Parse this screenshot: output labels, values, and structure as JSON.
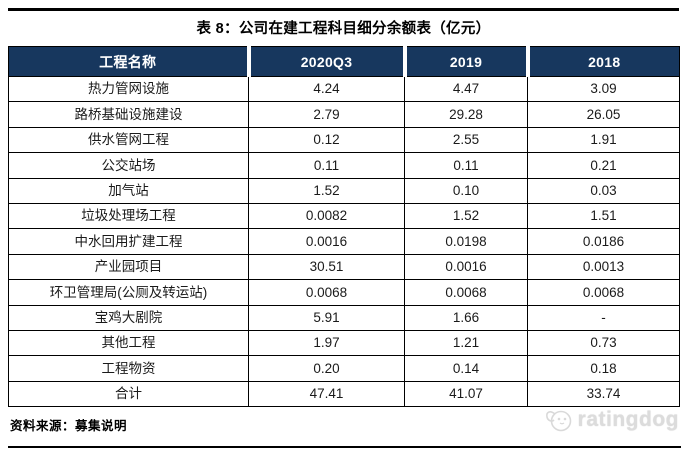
{
  "title": "表 8：公司在建工程科目细分余额表（亿元）",
  "table": {
    "columns": [
      "工程名称",
      "2020Q3",
      "2019",
      "2018"
    ],
    "rows": [
      [
        "热力管网设施",
        "4.24",
        "4.47",
        "3.09"
      ],
      [
        "路桥基础设施建设",
        "2.79",
        "29.28",
        "26.05"
      ],
      [
        "供水管网工程",
        "0.12",
        "2.55",
        "1.91"
      ],
      [
        "公交站场",
        "0.11",
        "0.11",
        "0.21"
      ],
      [
        "加气站",
        "1.52",
        "0.10",
        "0.03"
      ],
      [
        "垃圾处理场工程",
        "0.0082",
        "1.52",
        "1.51"
      ],
      [
        "中水回用扩建工程",
        "0.0016",
        "0.0198",
        "0.0186"
      ],
      [
        "产业园项目",
        "30.51",
        "0.0016",
        "0.0013"
      ],
      [
        "环卫管理局(公厕及转运站)",
        "0.0068",
        "0.0068",
        "0.0068"
      ],
      [
        "宝鸡大剧院",
        "5.91",
        "1.66",
        "-"
      ],
      [
        "其他工程",
        "1.97",
        "1.21",
        "0.73"
      ],
      [
        "工程物资",
        "0.20",
        "0.14",
        "0.18"
      ],
      [
        "合计",
        "47.41",
        "41.07",
        "33.74"
      ]
    ]
  },
  "footer": {
    "source_label": "资料来源：募集说明"
  },
  "watermark": {
    "brand": "ratingdog"
  },
  "colors": {
    "header_bg": "#17375E",
    "header_text": "#FFFFFF",
    "border": "#000000",
    "watermark": "#DCDCDC"
  }
}
